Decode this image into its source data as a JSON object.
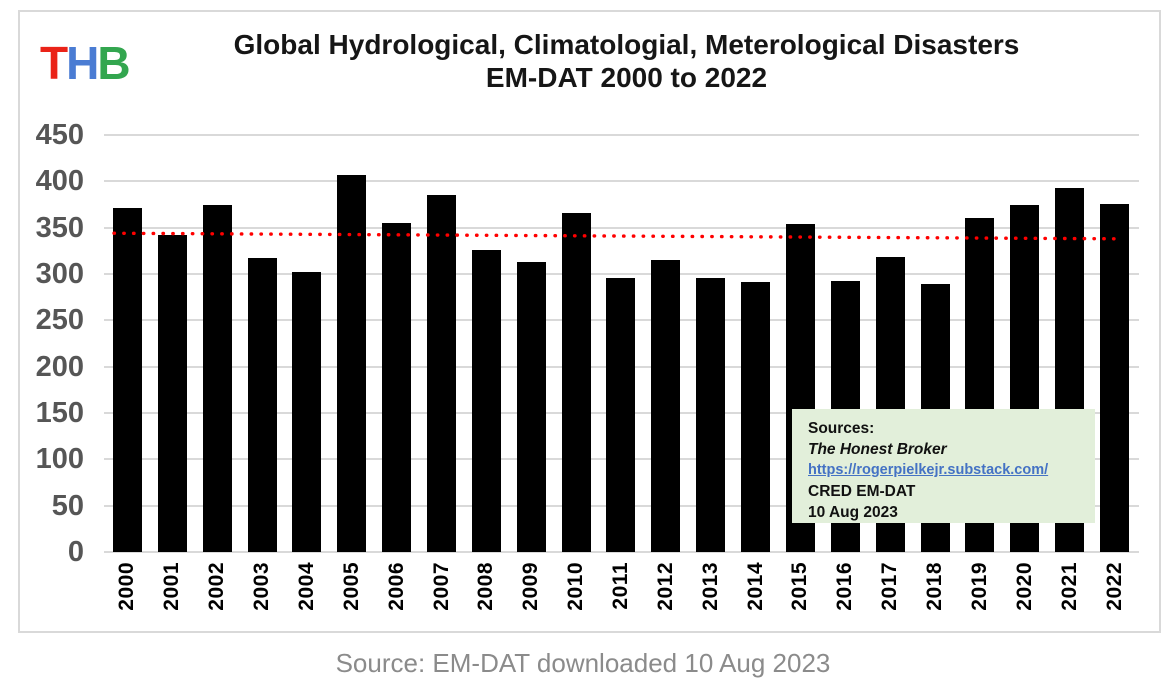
{
  "logo": {
    "letters": [
      {
        "char": "T",
        "color": "#ea2318"
      },
      {
        "char": "H",
        "color": "#4a7cd3"
      },
      {
        "char": "B",
        "color": "#33a64f"
      }
    ]
  },
  "title": {
    "line1": "Global Hydrological, Climatologial, Meterological Disasters",
    "line2": "EM-DAT 2000 to 2022"
  },
  "chart_data": {
    "type": "bar",
    "title": "Global Hydrological, Climatologial, Meterological Disasters EM-DAT 2000 to 2022",
    "categories": [
      "2000",
      "2001",
      "2002",
      "2003",
      "2004",
      "2005",
      "2006",
      "2007",
      "2008",
      "2009",
      "2010",
      "2011",
      "2012",
      "2013",
      "2014",
      "2015",
      "2016",
      "2017",
      "2018",
      "2019",
      "2020",
      "2021",
      "2022"
    ],
    "values": [
      371,
      342,
      375,
      317,
      302,
      407,
      355,
      385,
      326,
      313,
      366,
      296,
      315,
      296,
      291,
      354,
      293,
      318,
      289,
      360,
      375,
      393,
      376
    ],
    "xlabel": "",
    "ylabel": "",
    "ylim": [
      0,
      450
    ],
    "yticks": [
      0,
      50,
      100,
      150,
      200,
      250,
      300,
      350,
      400,
      450
    ],
    "grid": true,
    "legend_position": "none",
    "trendline": {
      "style": "dotted",
      "start_value": 344,
      "end_value": 338
    }
  },
  "colors": {
    "bar": "#000000",
    "trend": "#ff0000",
    "gridline": "#d9d9d9",
    "frame_border": "#d9d9d9",
    "axis_label": "#565656",
    "box_bg": "#e2efda",
    "link": "#4472c4"
  },
  "source_box": {
    "lines": [
      {
        "text": "Sources:",
        "style": "bold"
      },
      {
        "text": "The Honest Broker",
        "style": "bold-italic"
      },
      {
        "text": "https://rogerpielkejr.substack.com/",
        "style": "link"
      },
      {
        "text": "CRED EM-DAT",
        "style": "bold"
      },
      {
        "text": "10 Aug 2023",
        "style": "bold"
      }
    ]
  },
  "caption": "Source: EM-DAT downloaded 10 Aug 2023"
}
